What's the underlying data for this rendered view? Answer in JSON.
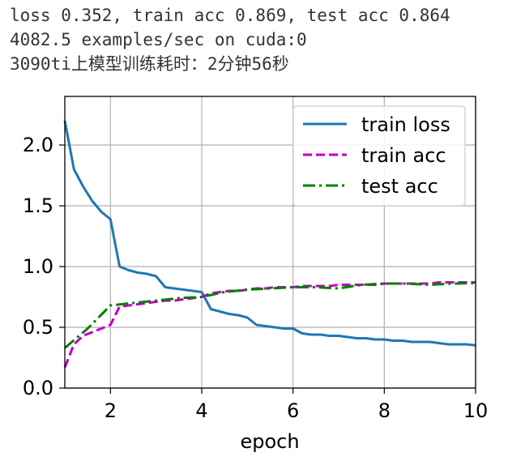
{
  "log": {
    "lines": [
      "loss 0.352, train acc 0.869, test acc 0.864",
      "4082.5 examples/sec on cuda:0",
      "3090ti上模型训练耗时：2分钟56秒"
    ]
  },
  "chart_data": {
    "type": "line",
    "xlabel": "epoch",
    "ylabel": "",
    "xlim": [
      1,
      10
    ],
    "ylim": [
      0,
      2.4
    ],
    "xticks": [
      "2",
      "4",
      "6",
      "8",
      "10"
    ],
    "yticks": [
      "0.0",
      "0.5",
      "1.0",
      "1.5",
      "2.0"
    ],
    "grid": true,
    "legend_position": "top-right",
    "series": [
      {
        "name": "train loss",
        "color": "#1f77b4",
        "style": "solid",
        "x": [
          1.0,
          1.2,
          1.4,
          1.6,
          1.8,
          2.0,
          2.2,
          2.4,
          2.6,
          2.8,
          3.0,
          3.2,
          3.4,
          3.6,
          3.8,
          4.0,
          4.2,
          4.4,
          4.6,
          4.8,
          5.0,
          5.2,
          5.4,
          5.6,
          5.8,
          6.0,
          6.2,
          6.4,
          6.6,
          6.8,
          7.0,
          7.2,
          7.4,
          7.6,
          7.8,
          8.0,
          8.2,
          8.4,
          8.6,
          8.8,
          9.0,
          9.2,
          9.4,
          9.6,
          9.8,
          10.0
        ],
        "y": [
          2.2,
          1.8,
          1.66,
          1.54,
          1.45,
          1.39,
          1.0,
          0.97,
          0.95,
          0.94,
          0.92,
          0.83,
          0.82,
          0.81,
          0.8,
          0.79,
          0.65,
          0.63,
          0.61,
          0.6,
          0.58,
          0.52,
          0.51,
          0.5,
          0.49,
          0.49,
          0.45,
          0.44,
          0.44,
          0.43,
          0.43,
          0.42,
          0.41,
          0.41,
          0.4,
          0.4,
          0.39,
          0.39,
          0.38,
          0.38,
          0.38,
          0.37,
          0.36,
          0.36,
          0.36,
          0.352
        ]
      },
      {
        "name": "train acc",
        "color": "#bf00bf",
        "style": "dashed",
        "x": [
          1.0,
          1.2,
          1.4,
          1.6,
          1.8,
          2.0,
          2.2,
          2.4,
          2.6,
          2.8,
          3.0,
          3.2,
          3.4,
          3.6,
          3.8,
          4.0,
          4.2,
          4.4,
          4.6,
          4.8,
          5.0,
          5.2,
          5.4,
          5.6,
          5.8,
          6.0,
          6.2,
          6.4,
          6.6,
          6.8,
          7.0,
          7.2,
          7.4,
          7.6,
          7.8,
          8.0,
          8.2,
          8.4,
          8.6,
          8.8,
          9.0,
          9.2,
          9.4,
          9.6,
          9.8,
          10.0
        ],
        "y": [
          0.17,
          0.36,
          0.43,
          0.46,
          0.49,
          0.52,
          0.67,
          0.68,
          0.69,
          0.7,
          0.71,
          0.72,
          0.72,
          0.73,
          0.74,
          0.75,
          0.78,
          0.79,
          0.8,
          0.8,
          0.81,
          0.82,
          0.82,
          0.83,
          0.83,
          0.83,
          0.84,
          0.84,
          0.84,
          0.84,
          0.85,
          0.85,
          0.85,
          0.85,
          0.85,
          0.86,
          0.86,
          0.86,
          0.86,
          0.86,
          0.86,
          0.87,
          0.87,
          0.87,
          0.87,
          0.869
        ]
      },
      {
        "name": "test acc",
        "color": "#008000",
        "style": "dashdot",
        "x": [
          1.0,
          1.5,
          2.0,
          2.5,
          3.0,
          3.5,
          4.0,
          4.5,
          5.0,
          5.5,
          6.0,
          6.5,
          7.0,
          7.5,
          8.0,
          8.5,
          9.0,
          9.5,
          10.0
        ],
        "y": [
          0.33,
          0.49,
          0.68,
          0.7,
          0.72,
          0.74,
          0.75,
          0.79,
          0.81,
          0.82,
          0.83,
          0.83,
          0.82,
          0.85,
          0.86,
          0.86,
          0.85,
          0.86,
          0.864
        ]
      }
    ]
  }
}
